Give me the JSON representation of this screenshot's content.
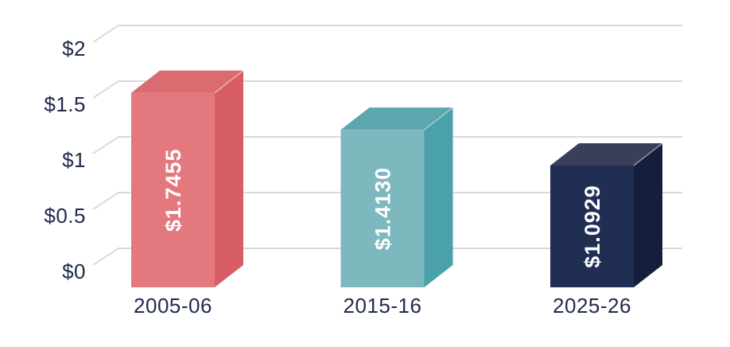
{
  "chart_data": {
    "type": "bar",
    "style": "3d-oblique-columns",
    "title": "",
    "xlabel": "",
    "ylabel": "",
    "categories": [
      "2005-06",
      "2015-16",
      "2025-26"
    ],
    "values": [
      1.7455,
      1.413,
      1.0929
    ],
    "value_labels": [
      "$1.7455",
      "$1.4130",
      "$1.0929"
    ],
    "bar_colors": [
      {
        "front": "#e3787f",
        "top": "#dc6a71",
        "side": "#d75e66"
      },
      {
        "front": "#7cb8be",
        "top": "#5ca7ae",
        "side": "#4aa0ab"
      },
      {
        "front": "#202e54",
        "top": "#3a3e5a",
        "side": "#161e3e"
      }
    ],
    "ylim": [
      0,
      2
    ],
    "y_ticks": [
      {
        "value": 0,
        "label": "$0"
      },
      {
        "value": 0.5,
        "label": "$0.5"
      },
      {
        "value": 1,
        "label": "$1"
      },
      {
        "value": 1.5,
        "label": "$1.5"
      },
      {
        "value": 2,
        "label": "$2"
      }
    ],
    "grid": true,
    "legend": false,
    "colors": {
      "grid": "#d9d9da",
      "axis_text": "#212a4d",
      "bar_value_text": "#ffffff",
      "background": "#ffffff"
    }
  }
}
